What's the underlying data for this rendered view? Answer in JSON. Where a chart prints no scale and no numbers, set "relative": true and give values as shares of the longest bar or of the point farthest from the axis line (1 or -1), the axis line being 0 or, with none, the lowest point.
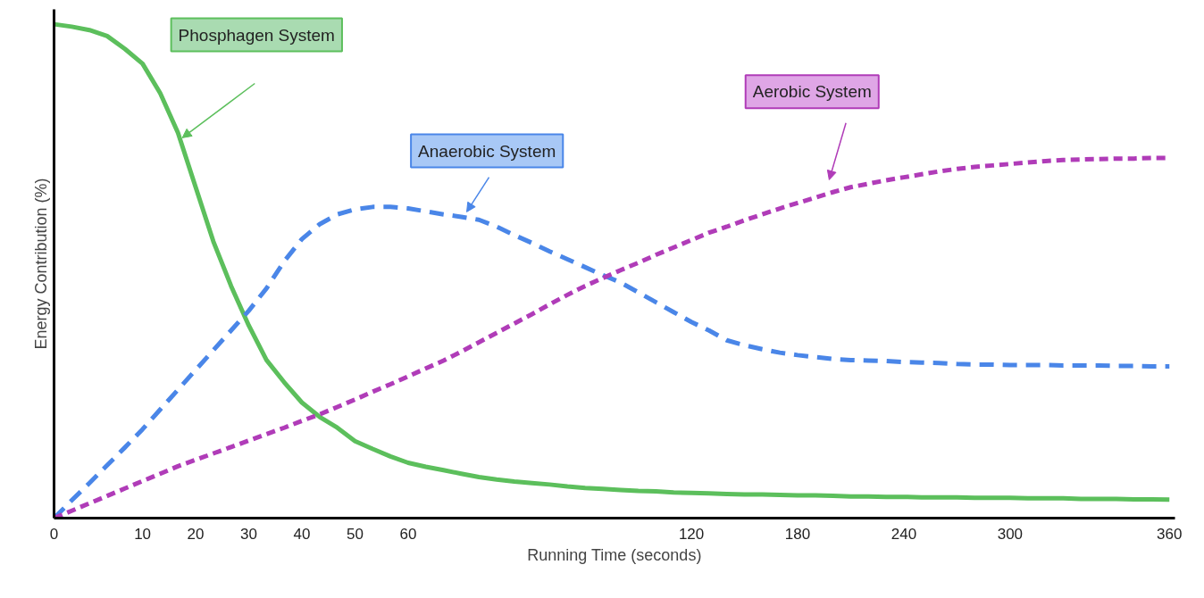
{
  "chart_data": {
    "type": "line",
    "relative": true,
    "xlabel": "Running Time (seconds)",
    "ylabel": "Energy Contribution (%)",
    "categories": [
      "0",
      null,
      null,
      null,
      null,
      "10",
      null,
      null,
      "20",
      null,
      null,
      "30",
      null,
      null,
      "40",
      null,
      null,
      "50",
      null,
      null,
      "60",
      null,
      null,
      null,
      null,
      null,
      null,
      null,
      null,
      null,
      null,
      null,
      null,
      null,
      null,
      null,
      "120",
      null,
      null,
      null,
      null,
      null,
      "180",
      null,
      null,
      null,
      null,
      null,
      "240",
      null,
      null,
      null,
      null,
      null,
      "300",
      null,
      null,
      null,
      null,
      null,
      null,
      null,
      null,
      "360"
    ],
    "grid": false,
    "legend": false,
    "series": [
      {
        "name": "Phosphagen System",
        "color": "#5cbf5c",
        "line_style": "solid",
        "values": [
          1.0,
          0.995,
          0.988,
          0.976,
          0.95,
          0.92,
          0.86,
          0.78,
          0.67,
          0.56,
          0.47,
          0.39,
          0.32,
          0.275,
          0.234,
          0.205,
          0.183,
          0.156,
          0.14,
          0.125,
          0.112,
          0.104,
          0.097,
          0.09,
          0.083,
          0.078,
          0.074,
          0.071,
          0.068,
          0.064,
          0.061,
          0.059,
          0.057,
          0.055,
          0.054,
          0.052,
          0.051,
          0.05,
          0.049,
          0.048,
          0.048,
          0.047,
          0.046,
          0.046,
          0.045,
          0.044,
          0.044,
          0.043,
          0.043,
          0.042,
          0.042,
          0.042,
          0.041,
          0.041,
          0.041,
          0.04,
          0.04,
          0.04,
          0.039,
          0.039,
          0.039,
          0.038,
          0.038,
          0.0375
        ]
      },
      {
        "name": "Anaerobic System",
        "color": "#4a86e8",
        "line_style": "dashed",
        "values": [
          0,
          0.036,
          0.071,
          0.107,
          0.143,
          0.18,
          0.22,
          0.26,
          0.3,
          0.34,
          0.38,
          0.42,
          0.465,
          0.52,
          0.565,
          0.595,
          0.615,
          0.625,
          0.63,
          0.63,
          0.627,
          0.621,
          0.615,
          0.61,
          0.604,
          0.59,
          0.573,
          0.557,
          0.54,
          0.524,
          0.508,
          0.492,
          0.477,
          0.457,
          0.437,
          0.417,
          0.397,
          0.38,
          0.36,
          0.35,
          0.342,
          0.335,
          0.33,
          0.326,
          0.322,
          0.32,
          0.319,
          0.318,
          0.316,
          0.315,
          0.314,
          0.312,
          0.311,
          0.311,
          0.31,
          0.31,
          0.31,
          0.309,
          0.309,
          0.309,
          0.308,
          0.308,
          0.307,
          0.307
        ]
      },
      {
        "name": "Aerobic System",
        "color": "#b03cb8",
        "line_style": "dashed",
        "values": [
          0,
          0.015,
          0.03,
          0.045,
          0.06,
          0.075,
          0.09,
          0.105,
          0.118,
          0.131,
          0.144,
          0.157,
          0.17,
          0.183,
          0.197,
          0.21,
          0.225,
          0.24,
          0.256,
          0.271,
          0.287,
          0.303,
          0.319,
          0.337,
          0.356,
          0.375,
          0.394,
          0.413,
          0.433,
          0.452,
          0.47,
          0.486,
          0.502,
          0.517,
          0.533,
          0.548,
          0.563,
          0.578,
          0.59,
          0.603,
          0.615,
          0.627,
          0.638,
          0.649,
          0.66,
          0.67,
          0.677,
          0.684,
          0.69,
          0.696,
          0.702,
          0.707,
          0.711,
          0.714,
          0.717,
          0.72,
          0.723,
          0.725,
          0.726,
          0.727,
          0.728,
          0.728,
          0.729,
          0.729
        ]
      }
    ]
  }
}
